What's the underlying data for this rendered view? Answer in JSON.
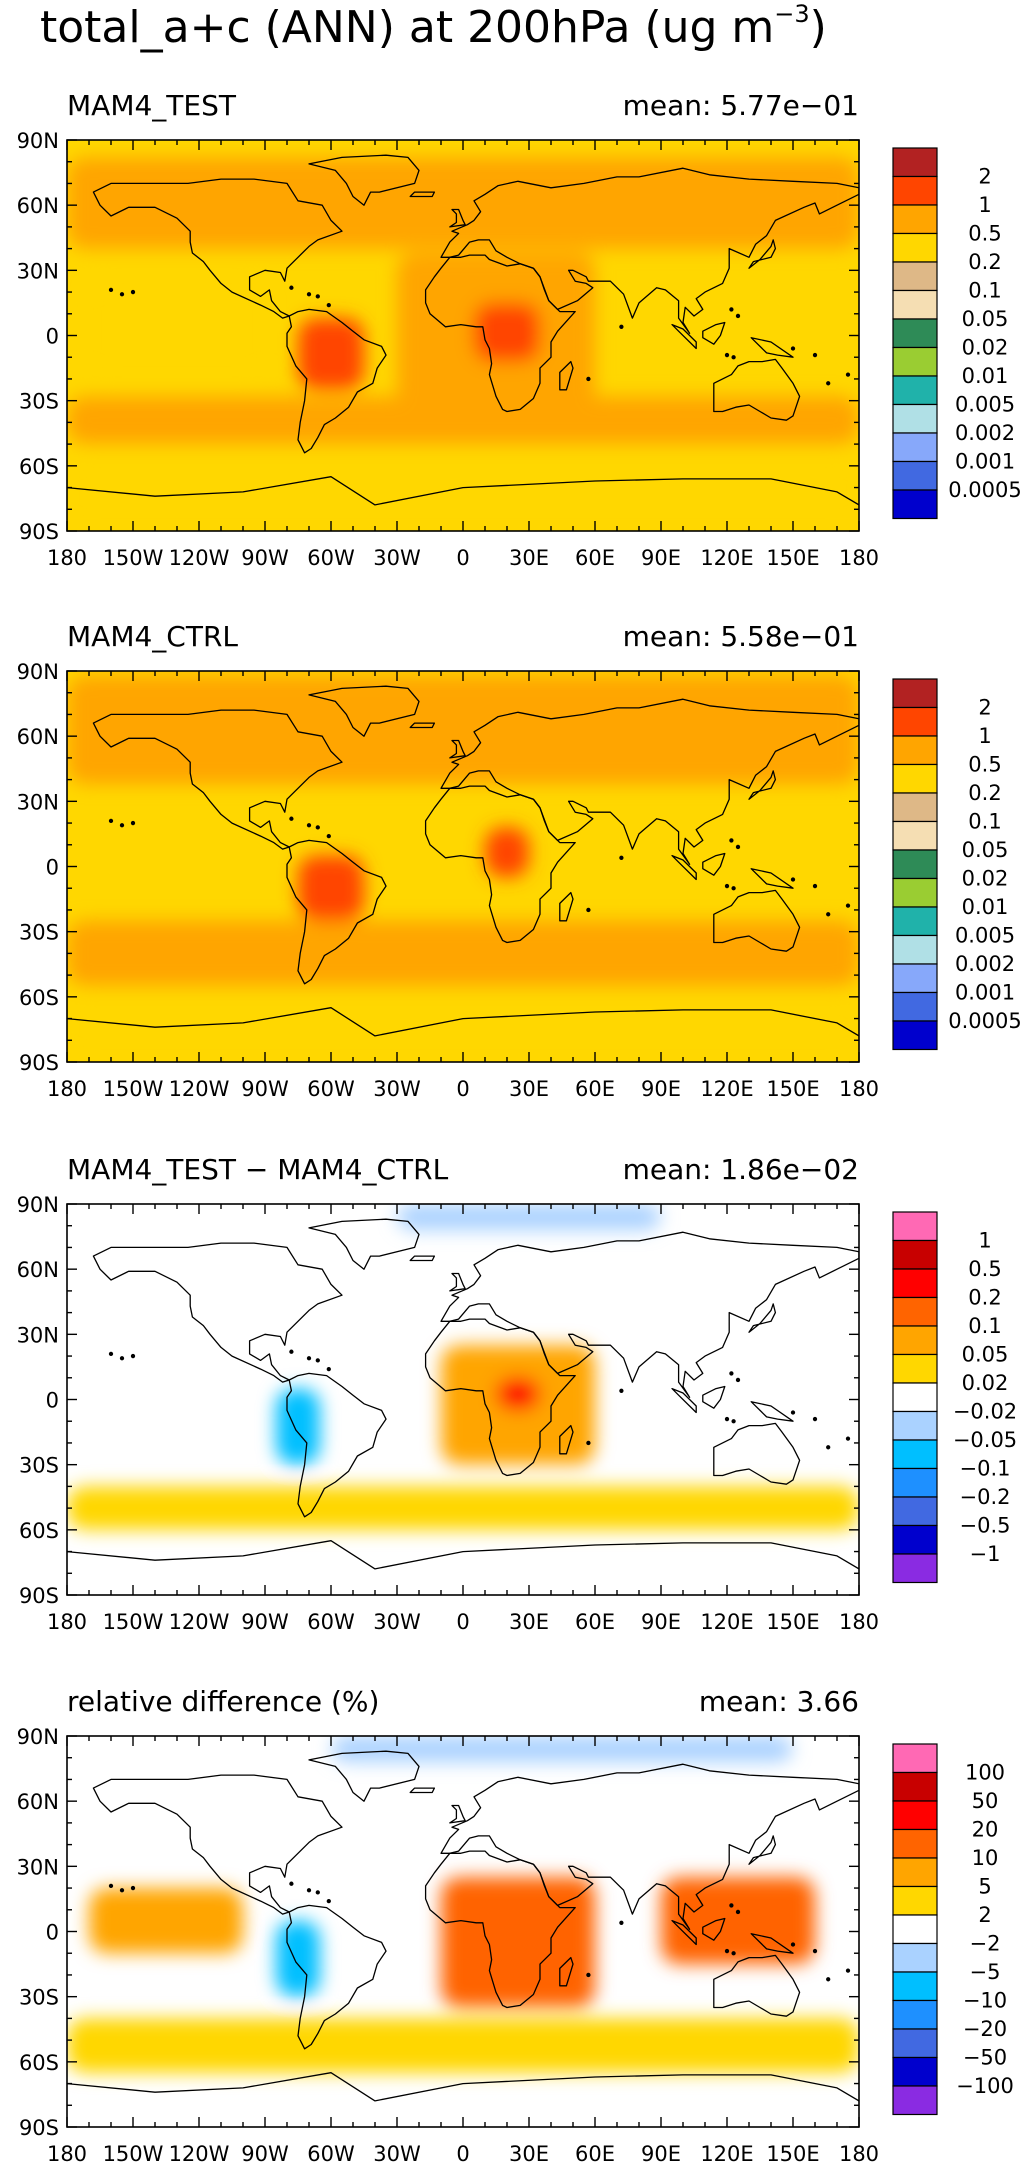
{
  "title": {
    "prefix": "total_a+c (ANN) at 200hPa (ug m",
    "exponent": "−3",
    "suffix": ")"
  },
  "axes": {
    "lat_labels": [
      "90N",
      "60N",
      "30N",
      "0",
      "30S",
      "60S",
      "90S"
    ],
    "lon_labels": [
      "180",
      "150W",
      "120W",
      "90W",
      "60W",
      "30W",
      "0",
      "30E",
      "60E",
      "90E",
      "120E",
      "150E",
      "180"
    ]
  },
  "panels": [
    {
      "id": "test",
      "left_title": "MAM4_TEST",
      "right_title": "mean: 5.77e−01",
      "colorbar": {
        "labels": [
          "2",
          "1",
          "0.5",
          "0.2",
          "0.1",
          "0.05",
          "0.02",
          "0.01",
          "0.005",
          "0.002",
          "0.001",
          "0.0005"
        ],
        "colors": [
          "#B22222",
          "#FF4500",
          "#FFA500",
          "#FFD700",
          "#DEB887",
          "#F5DEB3",
          "#2E8B57",
          "#9ACD32",
          "#20B2AA",
          "#B0E0E6",
          "#87A8FA",
          "#4169E1",
          "#0000CD"
        ]
      }
    },
    {
      "id": "ctrl",
      "left_title": "MAM4_CTRL",
      "right_title": "mean: 5.58e−01",
      "colorbar": {
        "labels": [
          "2",
          "1",
          "0.5",
          "0.2",
          "0.1",
          "0.05",
          "0.02",
          "0.01",
          "0.005",
          "0.002",
          "0.001",
          "0.0005"
        ],
        "colors": [
          "#B22222",
          "#FF4500",
          "#FFA500",
          "#FFD700",
          "#DEB887",
          "#F5DEB3",
          "#2E8B57",
          "#9ACD32",
          "#20B2AA",
          "#B0E0E6",
          "#87A8FA",
          "#4169E1",
          "#0000CD"
        ]
      }
    },
    {
      "id": "diff",
      "left_title": "MAM4_TEST − MAM4_CTRL",
      "right_title": "mean: 1.86e−02",
      "colorbar": {
        "labels": [
          "1",
          "0.5",
          "0.2",
          "0.1",
          "0.05",
          "0.02",
          "−0.02",
          "−0.05",
          "−0.1",
          "−0.2",
          "−0.5",
          "−1"
        ],
        "colors": [
          "#FF69B4",
          "#C80000",
          "#FF0000",
          "#FF6400",
          "#FFA500",
          "#FFD700",
          "#FFFFFF",
          "#AAD2FF",
          "#00BFFF",
          "#1E90FF",
          "#4169E1",
          "#0000CD",
          "#8A2BE2"
        ]
      }
    },
    {
      "id": "rel",
      "left_title": "relative difference (%)",
      "right_title": "mean:   3.66",
      "colorbar": {
        "labels": [
          "100",
          "50",
          "20",
          "10",
          "5",
          "2",
          "−2",
          "−5",
          "−10",
          "−20",
          "−50",
          "−100"
        ],
        "colors": [
          "#FF69B4",
          "#C80000",
          "#FF0000",
          "#FF6400",
          "#FFA500",
          "#FFD700",
          "#FFFFFF",
          "#AAD2FF",
          "#00BFFF",
          "#1E90FF",
          "#4169E1",
          "#0000CD",
          "#8A2BE2"
        ]
      }
    }
  ],
  "chart_data": [
    {
      "type": "heatmap",
      "title": "MAM4_TEST",
      "subtitle": "mean: 5.77e-01",
      "xlim": [
        -180,
        180
      ],
      "ylim": [
        -90,
        90
      ],
      "mean": 0.577,
      "levels": [
        0.0005,
        0.001,
        0.002,
        0.005,
        0.01,
        0.02,
        0.05,
        0.1,
        0.2,
        0.5,
        1,
        2
      ],
      "regions": [
        {
          "lon": [
            -180,
            180
          ],
          "lat": [
            40,
            82
          ],
          "value_range": [
            0.5,
            1
          ]
        },
        {
          "lon": [
            -180,
            180
          ],
          "lat": [
            -50,
            -28
          ],
          "value_range": [
            0.5,
            1
          ]
        },
        {
          "lon": [
            -30,
            60
          ],
          "lat": [
            -40,
            38
          ],
          "value_range": [
            0.5,
            1
          ]
        },
        {
          "lon": [
            -75,
            -45
          ],
          "lat": [
            -25,
            8
          ],
          "value_range": [
            1,
            2
          ]
        },
        {
          "lon": [
            5,
            35
          ],
          "lat": [
            -12,
            15
          ],
          "value_range": [
            1,
            2
          ]
        },
        {
          "lon": [
            -180,
            180
          ],
          "lat": [
            -90,
            -55
          ],
          "value_range": [
            0.2,
            0.5
          ]
        },
        {
          "lon": [
            -170,
            -90
          ],
          "lat": [
            -20,
            25
          ],
          "value_range": [
            0.2,
            0.5
          ]
        }
      ]
    },
    {
      "type": "heatmap",
      "title": "MAM4_CTRL",
      "subtitle": "mean: 5.58e-01",
      "xlim": [
        -180,
        180
      ],
      "ylim": [
        -90,
        90
      ],
      "mean": 0.558,
      "levels": [
        0.0005,
        0.001,
        0.002,
        0.005,
        0.01,
        0.02,
        0.05,
        0.1,
        0.2,
        0.5,
        1,
        2
      ],
      "regions": [
        {
          "lon": [
            -180,
            180
          ],
          "lat": [
            38,
            88
          ],
          "value_range": [
            0.5,
            1
          ]
        },
        {
          "lon": [
            -180,
            180
          ],
          "lat": [
            -55,
            -25
          ],
          "value_range": [
            0.5,
            1
          ]
        },
        {
          "lon": [
            -75,
            -45
          ],
          "lat": [
            -25,
            5
          ],
          "value_range": [
            1,
            2
          ]
        },
        {
          "lon": [
            10,
            30
          ],
          "lat": [
            -5,
            18
          ],
          "value_range": [
            1,
            2
          ]
        },
        {
          "lon": [
            -180,
            180
          ],
          "lat": [
            -90,
            -58
          ],
          "value_range": [
            0.2,
            0.5
          ]
        }
      ]
    },
    {
      "type": "heatmap",
      "title": "MAM4_TEST - MAM4_CTRL",
      "subtitle": "mean: 1.86e-02",
      "xlim": [
        -180,
        180
      ],
      "ylim": [
        -90,
        90
      ],
      "mean": 0.0186,
      "levels": [
        -1,
        -0.5,
        -0.2,
        -0.1,
        -0.05,
        -0.02,
        0.02,
        0.05,
        0.1,
        0.2,
        0.5,
        1
      ],
      "regions": [
        {
          "lon": [
            -10,
            60
          ],
          "lat": [
            -30,
            25
          ],
          "value_range": [
            0.05,
            0.2
          ]
        },
        {
          "lon": [
            15,
            35
          ],
          "lat": [
            -5,
            10
          ],
          "value_range": [
            0.2,
            0.5
          ]
        },
        {
          "lon": [
            -85,
            -65
          ],
          "lat": [
            -30,
            5
          ],
          "value_range": [
            -0.2,
            -0.05
          ]
        },
        {
          "lon": [
            -180,
            180
          ],
          "lat": [
            -60,
            -40
          ],
          "value_range": [
            0.02,
            0.05
          ]
        },
        {
          "lon": [
            -30,
            90
          ],
          "lat": [
            78,
            90
          ],
          "value_range": [
            -0.05,
            -0.02
          ]
        }
      ]
    },
    {
      "type": "heatmap",
      "title": "relative difference (%)",
      "subtitle": "mean: 3.66",
      "xlim": [
        -180,
        180
      ],
      "ylim": [
        -90,
        90
      ],
      "mean": 3.66,
      "levels": [
        -100,
        -50,
        -20,
        -10,
        -5,
        -2,
        2,
        5,
        10,
        20,
        50,
        100
      ],
      "regions": [
        {
          "lon": [
            -10,
            60
          ],
          "lat": [
            -35,
            25
          ],
          "value_range": [
            10,
            50
          ]
        },
        {
          "lon": [
            90,
            160
          ],
          "lat": [
            -15,
            25
          ],
          "value_range": [
            10,
            50
          ]
        },
        {
          "lon": [
            -170,
            -100
          ],
          "lat": [
            -10,
            20
          ],
          "value_range": [
            5,
            20
          ]
        },
        {
          "lon": [
            -85,
            -65
          ],
          "lat": [
            -30,
            5
          ],
          "value_range": [
            -20,
            -5
          ]
        },
        {
          "lon": [
            -60,
            150
          ],
          "lat": [
            78,
            90
          ],
          "value_range": [
            -10,
            -2
          ]
        },
        {
          "lon": [
            -180,
            180
          ],
          "lat": [
            -65,
            -40
          ],
          "value_range": [
            2,
            10
          ]
        }
      ]
    }
  ]
}
